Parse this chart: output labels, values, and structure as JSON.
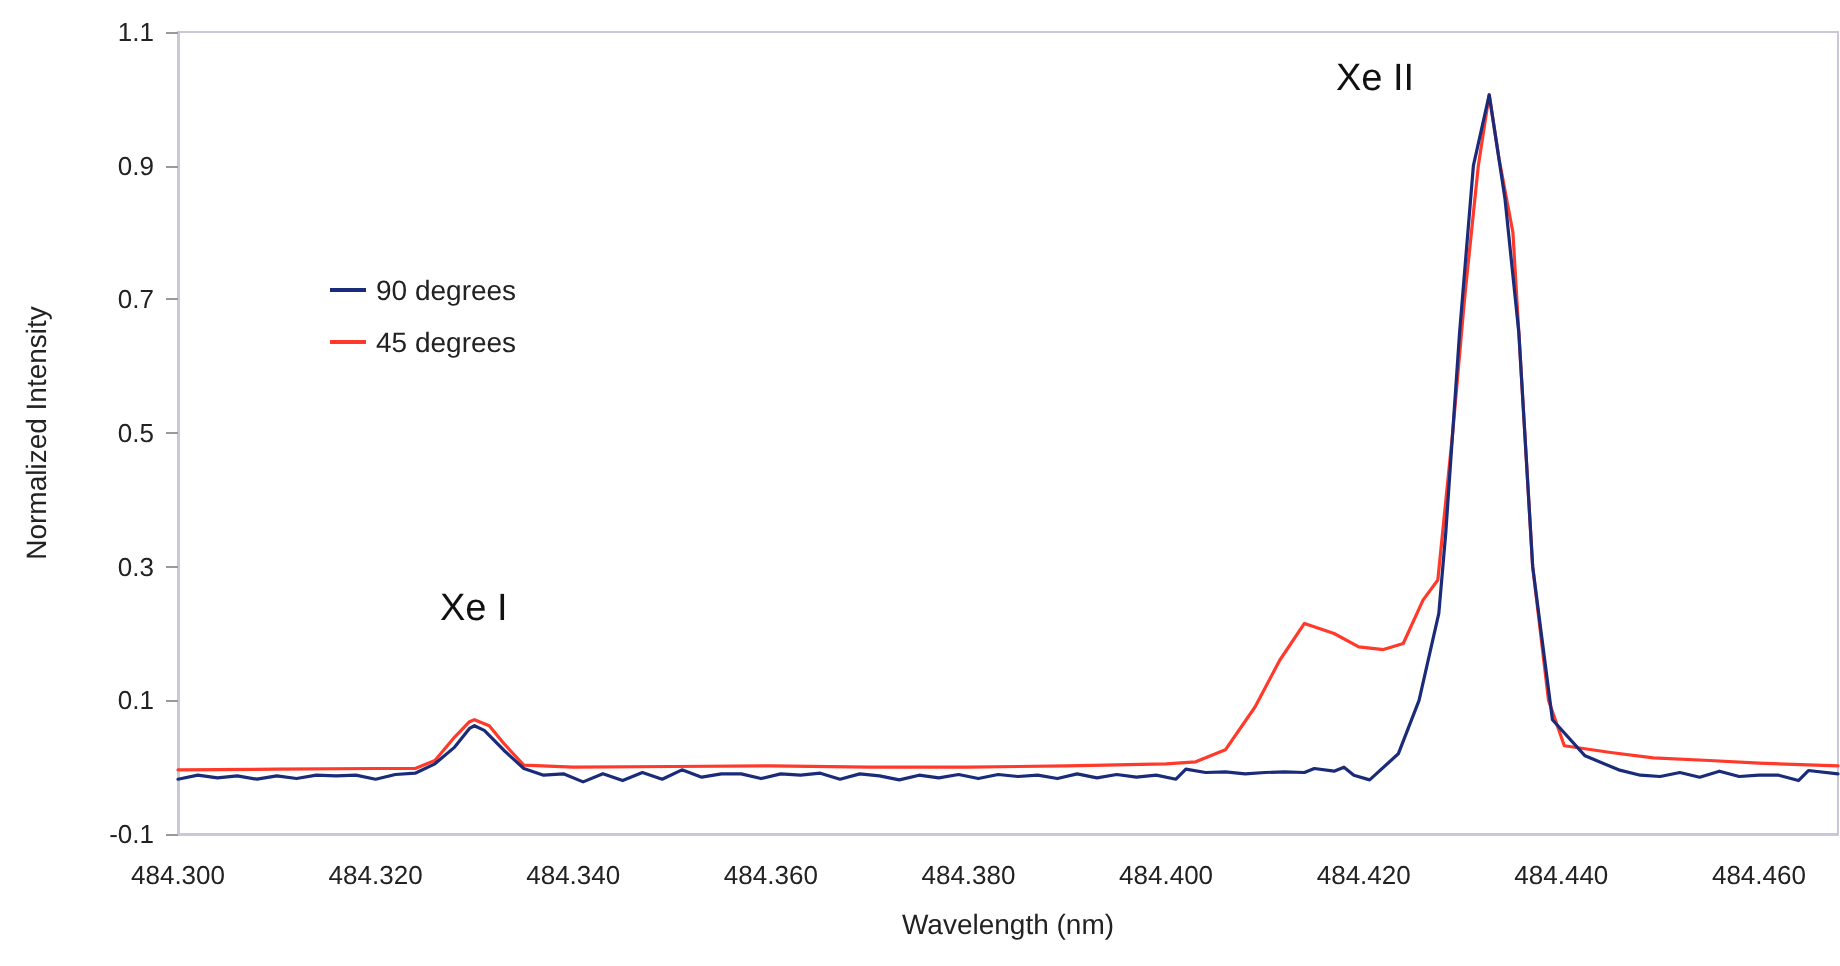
{
  "chart_data": {
    "type": "line",
    "xlabel": "Wavelength (nm)",
    "ylabel": "Normalized Intensity",
    "xlim": [
      484.3,
      484.468
    ],
    "ylim": [
      -0.1,
      1.1
    ],
    "xticks": [
      {
        "value": 484.3,
        "label": "484.300"
      },
      {
        "value": 484.32,
        "label": "484.320"
      },
      {
        "value": 484.34,
        "label": "484.340"
      },
      {
        "value": 484.36,
        "label": "484.360"
      },
      {
        "value": 484.38,
        "label": "484.380"
      },
      {
        "value": 484.4,
        "label": "484.400"
      },
      {
        "value": 484.42,
        "label": "484.420"
      },
      {
        "value": 484.44,
        "label": "484.440"
      },
      {
        "value": 484.46,
        "label": "484.460"
      }
    ],
    "yticks": [
      -0.1,
      0.1,
      0.3,
      0.5,
      0.7,
      0.9,
      1.1
    ],
    "grid": false,
    "legend": "top left",
    "marker": "none",
    "line_style": "solid",
    "annotations": [
      "Xe I",
      "Xe II"
    ],
    "series": [
      {
        "name": "90 degrees",
        "color": "#1a2b7a",
        "x": [
          484.3,
          484.302,
          484.304,
          484.306,
          484.308,
          484.31,
          484.312,
          484.314,
          484.316,
          484.318,
          484.32,
          484.322,
          484.324,
          484.326,
          484.328,
          484.3295,
          484.33,
          484.331,
          484.333,
          484.335,
          484.337,
          484.339,
          484.341,
          484.343,
          484.345,
          484.347,
          484.349,
          484.351,
          484.353,
          484.355,
          484.357,
          484.359,
          484.361,
          484.363,
          484.365,
          484.367,
          484.369,
          484.371,
          484.373,
          484.375,
          484.377,
          484.379,
          484.381,
          484.383,
          484.385,
          484.387,
          484.389,
          484.391,
          484.393,
          484.395,
          484.397,
          484.399,
          484.401,
          484.402,
          484.404,
          484.406,
          484.408,
          484.41,
          484.412,
          484.414,
          484.415,
          484.417,
          484.418,
          484.419,
          484.4206,
          484.4235,
          484.4256,
          484.4276,
          484.4283,
          484.4297,
          484.4311,
          484.4327,
          484.4343,
          484.4357,
          484.4371,
          484.4391,
          484.4424,
          484.4458,
          484.448,
          484.45,
          484.452,
          484.454,
          484.456,
          484.458,
          484.46,
          484.462,
          484.464,
          484.465,
          484.468
        ],
        "values": [
          -0.018,
          -0.012,
          -0.016,
          -0.013,
          -0.018,
          -0.013,
          -0.017,
          -0.012,
          -0.013,
          -0.012,
          -0.018,
          -0.011,
          -0.009,
          0.005,
          0.03,
          0.058,
          0.062,
          0.055,
          0.025,
          -0.002,
          -0.012,
          -0.01,
          -0.022,
          -0.01,
          -0.02,
          -0.008,
          -0.018,
          -0.004,
          -0.015,
          -0.01,
          -0.01,
          -0.017,
          -0.01,
          -0.012,
          -0.009,
          -0.018,
          -0.01,
          -0.013,
          -0.019,
          -0.012,
          -0.016,
          -0.011,
          -0.017,
          -0.011,
          -0.014,
          -0.012,
          -0.017,
          -0.01,
          -0.016,
          -0.011,
          -0.015,
          -0.012,
          -0.018,
          -0.003,
          -0.008,
          -0.007,
          -0.01,
          -0.008,
          -0.007,
          -0.008,
          -0.002,
          -0.006,
          0.0,
          -0.012,
          -0.019,
          0.02,
          0.1,
          0.23,
          0.35,
          0.65,
          0.9,
          1.006,
          0.85,
          0.65,
          0.3,
          0.071,
          0.017,
          -0.004,
          -0.012,
          -0.014,
          -0.008,
          -0.015,
          -0.006,
          -0.014,
          -0.012,
          -0.012,
          -0.02,
          -0.005,
          -0.01
        ]
      },
      {
        "name": "45 degrees",
        "color": "#ff3a2a",
        "x": [
          484.3,
          484.31,
          484.32,
          484.324,
          484.326,
          484.328,
          484.3295,
          484.33,
          484.3315,
          484.333,
          484.335,
          484.34,
          484.35,
          484.36,
          484.37,
          484.38,
          484.39,
          484.4,
          484.403,
          484.406,
          484.409,
          484.4115,
          484.414,
          484.417,
          484.4195,
          484.422,
          484.424,
          484.426,
          484.4275,
          484.429,
          484.4302,
          484.4316,
          484.4327,
          484.4337,
          484.4351,
          484.4361,
          484.4371,
          484.4387,
          484.4403,
          484.445,
          484.4493,
          484.455,
          484.46,
          484.468
        ],
        "values": [
          -0.004,
          -0.003,
          -0.002,
          -0.002,
          0.01,
          0.045,
          0.068,
          0.071,
          0.062,
          0.035,
          0.003,
          0.0,
          0.001,
          0.002,
          0.0,
          0.0,
          0.002,
          0.005,
          0.008,
          0.026,
          0.09,
          0.16,
          0.215,
          0.2,
          0.18,
          0.176,
          0.185,
          0.25,
          0.28,
          0.5,
          0.7,
          0.9,
          1.006,
          0.91,
          0.8,
          0.55,
          0.3,
          0.1,
          0.032,
          0.022,
          0.014,
          0.01,
          0.006,
          0.002
        ]
      }
    ]
  }
}
